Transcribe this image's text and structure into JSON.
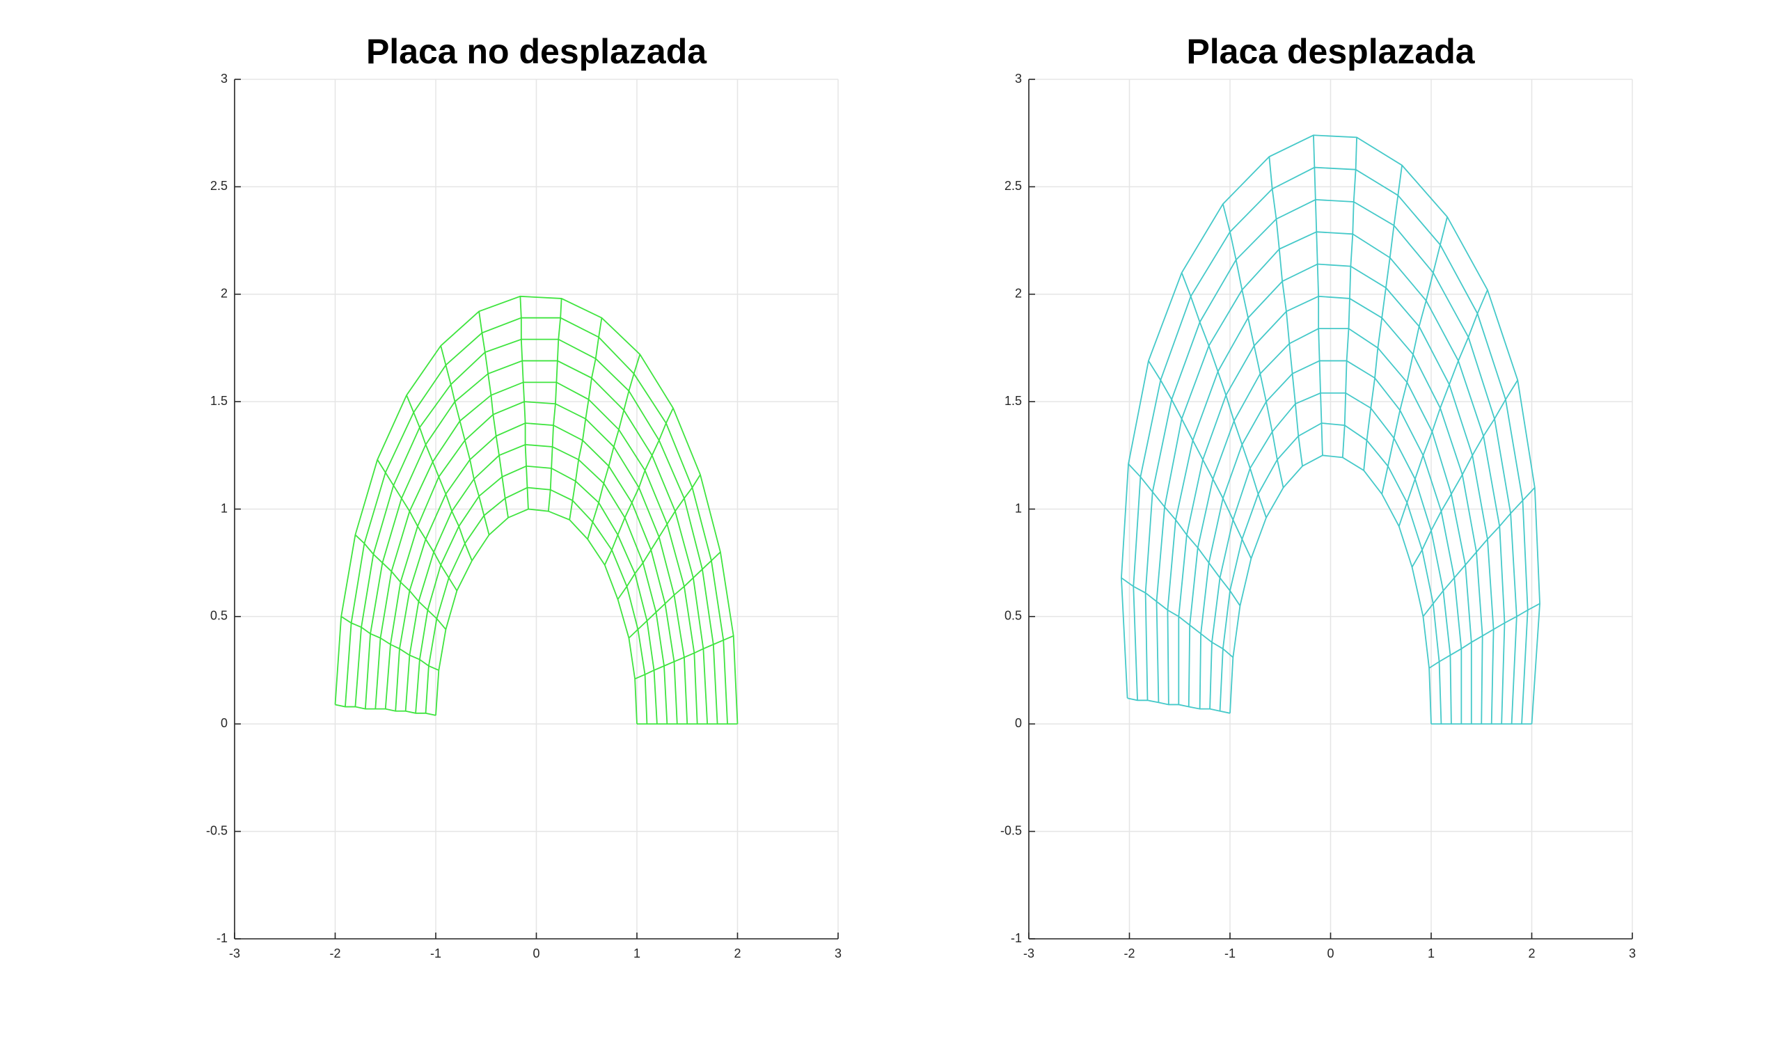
{
  "chart_data": [
    {
      "type": "mesh",
      "title": "Placa no desplazada",
      "color": "#3fe43f",
      "x": [
        [
          1,
          0.98,
          0.92,
          0.81,
          0.68,
          0.51,
          0.33,
          0.12,
          -0.08,
          -0.28,
          -0.47,
          -0.64,
          -0.79,
          -0.9,
          -0.97,
          -1
        ],
        [
          1.1,
          1.08,
          1.01,
          0.9,
          0.75,
          0.56,
          0.36,
          0.14,
          -0.09,
          -0.31,
          -0.52,
          -0.71,
          -0.87,
          -0.99,
          -1.07,
          -1.1
        ],
        [
          1.2,
          1.17,
          1.1,
          0.98,
          0.81,
          0.62,
          0.39,
          0.15,
          -0.1,
          -0.34,
          -0.57,
          -0.77,
          -0.95,
          -1.08,
          -1.16,
          -1.2
        ],
        [
          1.3,
          1.27,
          1.19,
          1.06,
          0.88,
          0.67,
          0.42,
          0.16,
          -0.11,
          -0.37,
          -0.62,
          -0.84,
          -1.02,
          -1.17,
          -1.26,
          -1.3
        ],
        [
          1.4,
          1.37,
          1.28,
          1.14,
          0.95,
          0.72,
          0.46,
          0.17,
          -0.11,
          -0.4,
          -0.66,
          -0.9,
          -1.1,
          -1.26,
          -1.36,
          -1.4
        ],
        [
          1.5,
          1.47,
          1.37,
          1.22,
          1.02,
          0.77,
          0.49,
          0.19,
          -0.12,
          -0.43,
          -0.71,
          -0.97,
          -1.18,
          -1.35,
          -1.45,
          -1.5
        ],
        [
          1.6,
          1.57,
          1.47,
          1.3,
          1.08,
          0.82,
          0.52,
          0.2,
          -0.13,
          -0.45,
          -0.76,
          -1.03,
          -1.26,
          -1.44,
          -1.55,
          -1.6
        ],
        [
          1.7,
          1.66,
          1.56,
          1.38,
          1.15,
          0.87,
          0.55,
          0.21,
          -0.14,
          -0.48,
          -0.81,
          -1.1,
          -1.34,
          -1.53,
          -1.65,
          -1.7
        ],
        [
          1.8,
          1.76,
          1.65,
          1.47,
          1.22,
          0.92,
          0.59,
          0.22,
          -0.15,
          -0.51,
          -0.85,
          -1.16,
          -1.42,
          -1.62,
          -1.74,
          -1.8
        ],
        [
          1.9,
          1.86,
          1.74,
          1.55,
          1.29,
          0.97,
          0.62,
          0.24,
          -0.15,
          -0.54,
          -0.9,
          -1.22,
          -1.5,
          -1.71,
          -1.84,
          -1.9
        ],
        [
          2,
          1.96,
          1.83,
          1.63,
          1.36,
          1.03,
          0.65,
          0.25,
          -0.16,
          -0.57,
          -0.95,
          -1.29,
          -1.58,
          -1.8,
          -1.94,
          -2
        ]
      ],
      "y": [
        [
          0,
          0.21,
          0.4,
          0.58,
          0.74,
          0.86,
          0.95,
          0.99,
          1,
          0.96,
          0.88,
          0.76,
          0.62,
          0.44,
          0.25,
          0.04
        ],
        [
          0,
          0.23,
          0.44,
          0.64,
          0.81,
          0.94,
          1.04,
          1.09,
          1.1,
          1.05,
          0.97,
          0.84,
          0.68,
          0.49,
          0.27,
          0.05
        ],
        [
          0,
          0.25,
          0.48,
          0.7,
          0.88,
          1.03,
          1.13,
          1.19,
          1.2,
          1.15,
          1.06,
          0.92,
          0.74,
          0.53,
          0.3,
          0.05
        ],
        [
          0,
          0.27,
          0.52,
          0.75,
          0.96,
          1.12,
          1.23,
          1.29,
          1.3,
          1.25,
          1.14,
          0.99,
          0.8,
          0.57,
          0.32,
          0.06
        ],
        [
          0,
          0.29,
          0.56,
          0.81,
          1.03,
          1.2,
          1.32,
          1.39,
          1.4,
          1.34,
          1.23,
          1.07,
          0.86,
          0.62,
          0.35,
          0.06
        ],
        [
          0,
          0.31,
          0.6,
          0.87,
          1.1,
          1.29,
          1.42,
          1.49,
          1.5,
          1.44,
          1.32,
          1.15,
          0.92,
          0.66,
          0.37,
          0.07
        ],
        [
          0,
          0.33,
          0.64,
          0.93,
          1.18,
          1.37,
          1.51,
          1.59,
          1.59,
          1.53,
          1.41,
          1.22,
          0.99,
          0.71,
          0.4,
          0.07
        ],
        [
          0,
          0.35,
          0.68,
          0.99,
          1.25,
          1.46,
          1.61,
          1.69,
          1.69,
          1.63,
          1.5,
          1.3,
          1.05,
          0.75,
          0.42,
          0.07
        ],
        [
          0,
          0.37,
          0.72,
          1.05,
          1.32,
          1.55,
          1.7,
          1.79,
          1.79,
          1.73,
          1.58,
          1.38,
          1.11,
          0.79,
          0.45,
          0.08
        ],
        [
          0,
          0.39,
          0.76,
          1.1,
          1.4,
          1.63,
          1.8,
          1.89,
          1.89,
          1.82,
          1.67,
          1.45,
          1.17,
          0.84,
          0.47,
          0.08
        ],
        [
          0,
          0.41,
          0.8,
          1.16,
          1.47,
          1.72,
          1.89,
          1.98,
          1.99,
          1.92,
          1.76,
          1.53,
          1.23,
          0.88,
          0.5,
          0.09
        ]
      ],
      "xlim": [
        -3,
        3
      ],
      "ylim": [
        -1,
        3
      ],
      "xticks": [
        -3,
        -2,
        -1,
        0,
        1,
        2,
        3
      ],
      "yticks": [
        -1,
        -0.5,
        0,
        0.5,
        1,
        1.5,
        2,
        2.5,
        3
      ],
      "grid": true
    },
    {
      "type": "mesh",
      "title": "Placa desplazada",
      "color": "#45c9c9",
      "x": [
        [
          1,
          0.98,
          0.92,
          0.81,
          0.68,
          0.51,
          0.33,
          0.12,
          -0.08,
          -0.28,
          -0.47,
          -0.64,
          -0.79,
          -0.9,
          -0.97,
          -1
        ],
        [
          1.1,
          1.08,
          1.02,
          0.91,
          0.76,
          0.57,
          0.36,
          0.14,
          -0.09,
          -0.32,
          -0.53,
          -0.72,
          -0.88,
          -1,
          -1.07,
          -1.1
        ],
        [
          1.2,
          1.19,
          1.12,
          1,
          0.84,
          0.63,
          0.4,
          0.15,
          -0.1,
          -0.35,
          -0.58,
          -0.8,
          -0.97,
          -1.1,
          -1.18,
          -1.2
        ],
        [
          1.3,
          1.3,
          1.23,
          1.1,
          0.92,
          0.69,
          0.44,
          0.16,
          -0.11,
          -0.38,
          -0.64,
          -0.88,
          -1.07,
          -1.21,
          -1.29,
          -1.3
        ],
        [
          1.4,
          1.4,
          1.34,
          1.2,
          1.01,
          0.76,
          0.47,
          0.18,
          -0.12,
          -0.41,
          -0.7,
          -0.96,
          -1.17,
          -1.32,
          -1.4,
          -1.41
        ],
        [
          1.5,
          1.51,
          1.45,
          1.31,
          1.09,
          0.82,
          0.51,
          0.19,
          -0.12,
          -0.44,
          -0.76,
          -1.04,
          -1.27,
          -1.43,
          -1.51,
          -1.51
        ],
        [
          1.6,
          1.62,
          1.56,
          1.41,
          1.18,
          0.88,
          0.55,
          0.2,
          -0.13,
          -0.48,
          -0.82,
          -1.12,
          -1.37,
          -1.54,
          -1.62,
          -1.61
        ],
        [
          1.7,
          1.73,
          1.68,
          1.52,
          1.27,
          0.95,
          0.59,
          0.22,
          -0.14,
          -0.51,
          -0.88,
          -1.21,
          -1.48,
          -1.65,
          -1.73,
          -1.71
        ],
        [
          1.8,
          1.85,
          1.79,
          1.63,
          1.37,
          1.02,
          0.63,
          0.23,
          -0.15,
          -0.54,
          -0.94,
          -1.3,
          -1.58,
          -1.77,
          -1.84,
          -1.82
        ],
        [
          1.9,
          1.96,
          1.91,
          1.74,
          1.46,
          1.09,
          0.67,
          0.25,
          -0.16,
          -0.58,
          -1,
          -1.39,
          -1.69,
          -1.89,
          -1.96,
          -1.92
        ],
        [
          2,
          2.08,
          2.03,
          1.86,
          1.56,
          1.16,
          0.71,
          0.26,
          -0.17,
          -0.61,
          -1.07,
          -1.48,
          -1.81,
          -2.01,
          -2.08,
          -2.02
        ]
      ],
      "y": [
        [
          0,
          0.26,
          0.5,
          0.73,
          0.92,
          1.07,
          1.18,
          1.24,
          1.25,
          1.2,
          1.1,
          0.96,
          0.77,
          0.55,
          0.31,
          0.05
        ],
        [
          0,
          0.29,
          0.56,
          0.81,
          1.03,
          1.2,
          1.32,
          1.39,
          1.4,
          1.34,
          1.23,
          1.07,
          0.86,
          0.62,
          0.35,
          0.06
        ],
        [
          0,
          0.32,
          0.62,
          0.9,
          1.14,
          1.33,
          1.47,
          1.54,
          1.54,
          1.49,
          1.36,
          1.19,
          0.95,
          0.68,
          0.38,
          0.07
        ],
        [
          0,
          0.35,
          0.68,
          0.99,
          1.25,
          1.46,
          1.61,
          1.69,
          1.69,
          1.63,
          1.5,
          1.3,
          1.05,
          0.75,
          0.42,
          0.07
        ],
        [
          0,
          0.38,
          0.74,
          1.07,
          1.36,
          1.59,
          1.75,
          1.84,
          1.84,
          1.77,
          1.63,
          1.41,
          1.14,
          0.82,
          0.46,
          0.08
        ],
        [
          0,
          0.41,
          0.8,
          1.16,
          1.47,
          1.72,
          1.89,
          1.98,
          1.99,
          1.92,
          1.76,
          1.53,
          1.23,
          0.88,
          0.5,
          0.09
        ],
        [
          0,
          0.44,
          0.86,
          1.25,
          1.58,
          1.85,
          2.03,
          2.13,
          2.14,
          2.06,
          1.89,
          1.64,
          1.32,
          0.95,
          0.53,
          0.09
        ],
        [
          0,
          0.47,
          0.92,
          1.34,
          1.69,
          1.97,
          2.17,
          2.28,
          2.29,
          2.21,
          2.02,
          1.76,
          1.42,
          1.01,
          0.57,
          0.1
        ],
        [
          0,
          0.5,
          0.98,
          1.42,
          1.8,
          2.1,
          2.32,
          2.43,
          2.44,
          2.35,
          2.16,
          1.87,
          1.51,
          1.08,
          0.61,
          0.11
        ],
        [
          0,
          0.53,
          1.04,
          1.51,
          1.91,
          2.23,
          2.46,
          2.58,
          2.59,
          2.49,
          2.29,
          1.99,
          1.6,
          1.15,
          0.64,
          0.11
        ],
        [
          0,
          0.56,
          1.1,
          1.6,
          2.02,
          2.36,
          2.6,
          2.73,
          2.74,
          2.64,
          2.42,
          2.1,
          1.69,
          1.21,
          0.68,
          0.12
        ]
      ],
      "xlim": [
        -3,
        3
      ],
      "ylim": [
        -1,
        3
      ],
      "xticks": [
        -3,
        -2,
        -1,
        0,
        1,
        2,
        3
      ],
      "yticks": [
        -1,
        -0.5,
        0,
        0.5,
        1,
        1.5,
        2,
        2.5,
        3
      ],
      "grid": true
    }
  ]
}
